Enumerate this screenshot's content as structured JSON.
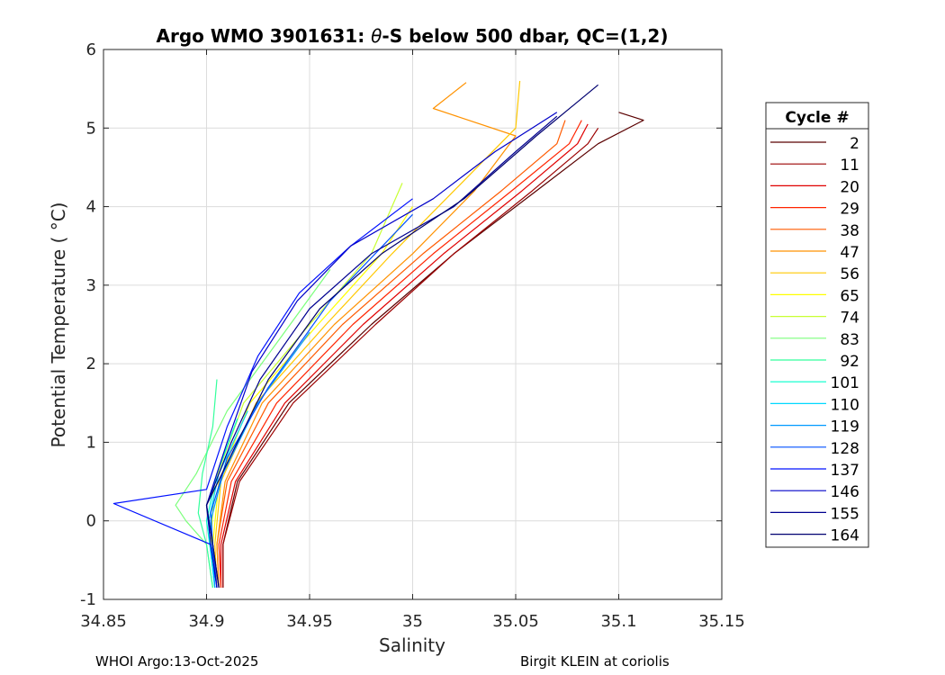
{
  "chart_data": {
    "type": "line",
    "title": "Argo WMO 3901631: θ-S below 500 dbar,  QC=(1,2)",
    "title_parts": {
      "prefix": "Argo WMO 3901631: ",
      "theta": "θ",
      "suffix": "-S below 500 dbar,  QC=(1,2)"
    },
    "xlabel": "Salinity",
    "ylabel": "Potential Temperature ( °C)",
    "xlim": [
      34.85,
      35.15
    ],
    "ylim": [
      -1,
      6
    ],
    "xticks": [
      "34.85",
      "34.9",
      "34.95",
      "35",
      "35.05",
      "35.1",
      "35.15"
    ],
    "yticks": [
      "-1",
      "0",
      "1",
      "2",
      "3",
      "4",
      "5",
      "6"
    ],
    "grid": true,
    "legend": {
      "title": "Cycle #",
      "position": "right",
      "entries": [
        "2",
        "11",
        "20",
        "29",
        "38",
        "47",
        "56",
        "65",
        "74",
        "83",
        "92",
        "101",
        "110",
        "119",
        "128",
        "137",
        "146",
        "155",
        "164"
      ],
      "colors": [
        "#5a0000",
        "#9c0000",
        "#e00000",
        "#ff2400",
        "#ff5a00",
        "#ff9200",
        "#ffc800",
        "#ffff00",
        "#c8ff33",
        "#7cff7c",
        "#33ff9c",
        "#00ffcc",
        "#00d8ff",
        "#0099ff",
        "#0050ff",
        "#0010ff",
        "#0000c8",
        "#000090",
        "#000070"
      ]
    },
    "series": [
      {
        "name": "2",
        "x": [
          34.908,
          34.908,
          34.915,
          34.94,
          34.98,
          35.02,
          35.06,
          35.09,
          35.112,
          35.1
        ],
        "y": [
          -0.85,
          -0.3,
          0.5,
          1.5,
          2.5,
          3.4,
          4.2,
          4.8,
          5.1,
          5.2
        ]
      },
      {
        "name": "11",
        "x": [
          34.908,
          34.908,
          34.916,
          34.942,
          34.982,
          35.02,
          35.058,
          35.085,
          35.09
        ],
        "y": [
          -0.85,
          -0.3,
          0.5,
          1.5,
          2.5,
          3.4,
          4.2,
          4.8,
          5.0
        ]
      },
      {
        "name": "20",
        "x": [
          34.907,
          34.907,
          34.914,
          34.938,
          34.976,
          35.015,
          35.053,
          35.08,
          35.085
        ],
        "y": [
          -0.85,
          -0.3,
          0.5,
          1.5,
          2.5,
          3.4,
          4.2,
          4.8,
          5.05
        ]
      },
      {
        "name": "29",
        "x": [
          34.907,
          34.906,
          34.912,
          34.934,
          34.971,
          35.01,
          35.048,
          35.076,
          35.082
        ],
        "y": [
          -0.85,
          -0.3,
          0.5,
          1.5,
          2.5,
          3.4,
          4.2,
          4.8,
          5.1
        ]
      },
      {
        "name": "38",
        "x": [
          34.906,
          34.905,
          34.91,
          34.93,
          34.966,
          35.005,
          35.043,
          35.07,
          35.074
        ],
        "y": [
          -0.85,
          -0.3,
          0.5,
          1.5,
          2.5,
          3.4,
          4.2,
          4.8,
          5.1
        ]
      },
      {
        "name": "47",
        "x": [
          34.906,
          34.905,
          34.909,
          34.927,
          34.962,
          35.0,
          35.03,
          35.05,
          35.01,
          35.026
        ],
        "y": [
          -0.85,
          -0.3,
          0.5,
          1.5,
          2.5,
          3.4,
          4.2,
          4.9,
          5.25,
          5.58
        ]
      },
      {
        "name": "56",
        "x": [
          34.905,
          34.904,
          34.907,
          34.924,
          34.958,
          34.99,
          35.02,
          35.05,
          35.052
        ],
        "y": [
          -0.85,
          -0.3,
          0.5,
          1.5,
          2.5,
          3.4,
          4.2,
          5.0,
          5.6
        ]
      },
      {
        "name": "65",
        "x": [
          34.905,
          34.903,
          34.906,
          34.921,
          34.954,
          34.985,
          35.0
        ],
        "y": [
          -0.85,
          -0.3,
          0.5,
          1.5,
          2.5,
          3.4,
          4.0
        ]
      },
      {
        "name": "74",
        "x": [
          34.904,
          34.902,
          34.904,
          34.918,
          34.95,
          34.98,
          34.995
        ],
        "y": [
          -0.85,
          -0.3,
          0.5,
          1.5,
          2.5,
          3.4,
          4.3
        ]
      },
      {
        "name": "83",
        "x": [
          34.903,
          34.9,
          34.89,
          34.885,
          34.895,
          34.91,
          34.935,
          34.96
        ],
        "y": [
          -0.85,
          -0.3,
          0.0,
          0.2,
          0.6,
          1.4,
          2.3,
          3.2
        ]
      },
      {
        "name": "92",
        "x": [
          34.903,
          34.9,
          34.896,
          34.898,
          34.903,
          34.905
        ],
        "y": [
          -0.85,
          -0.3,
          0.1,
          0.6,
          1.2,
          1.8
        ]
      },
      {
        "name": "101",
        "x": [
          34.904,
          34.902,
          34.9,
          34.905,
          34.915
        ],
        "y": [
          -0.85,
          -0.4,
          0.0,
          0.6,
          1.3
        ]
      },
      {
        "name": "110",
        "x": [
          34.904,
          34.902,
          34.901,
          34.906,
          34.92
        ],
        "y": [
          -0.85,
          -0.4,
          0.0,
          0.6,
          1.4
        ]
      },
      {
        "name": "119",
        "x": [
          34.904,
          34.903,
          34.902,
          34.908,
          34.925,
          34.95
        ],
        "y": [
          -0.85,
          -0.4,
          0.0,
          0.6,
          1.5,
          2.4
        ]
      },
      {
        "name": "128",
        "x": [
          34.905,
          34.903,
          34.902,
          34.91,
          34.93,
          34.96,
          35.0
        ],
        "y": [
          -0.85,
          -0.3,
          0.1,
          0.8,
          1.7,
          2.8,
          3.9
        ]
      },
      {
        "name": "137",
        "x": [
          34.905,
          34.902,
          34.855,
          34.9,
          34.91,
          34.925,
          34.945,
          34.97,
          35.0
        ],
        "y": [
          -0.85,
          -0.3,
          0.22,
          0.4,
          1.2,
          2.1,
          2.9,
          3.5,
          4.1
        ]
      },
      {
        "name": "146",
        "x": [
          34.905,
          34.902,
          34.9,
          34.91,
          34.922,
          34.944,
          34.97,
          35.01,
          35.04,
          35.07
        ],
        "y": [
          -0.85,
          -0.3,
          0.2,
          1.0,
          1.9,
          2.8,
          3.5,
          4.1,
          4.7,
          5.2
        ]
      },
      {
        "name": "155",
        "x": [
          34.906,
          34.903,
          34.9,
          34.912,
          34.926,
          34.95,
          34.98,
          35.02,
          35.05,
          35.07
        ],
        "y": [
          -0.85,
          -0.3,
          0.2,
          1.0,
          1.8,
          2.7,
          3.4,
          4.0,
          4.7,
          5.15
        ]
      },
      {
        "name": "164",
        "x": [
          34.906,
          34.903,
          34.9,
          34.915,
          34.93,
          34.955,
          34.985,
          35.025,
          35.06,
          35.09
        ],
        "y": [
          -0.85,
          -0.3,
          0.2,
          1.0,
          1.8,
          2.7,
          3.4,
          4.1,
          4.9,
          5.55
        ]
      }
    ]
  },
  "footer": {
    "left": "WHOI Argo:13-Oct-2025",
    "right": "Birgit KLEIN at coriolis"
  }
}
